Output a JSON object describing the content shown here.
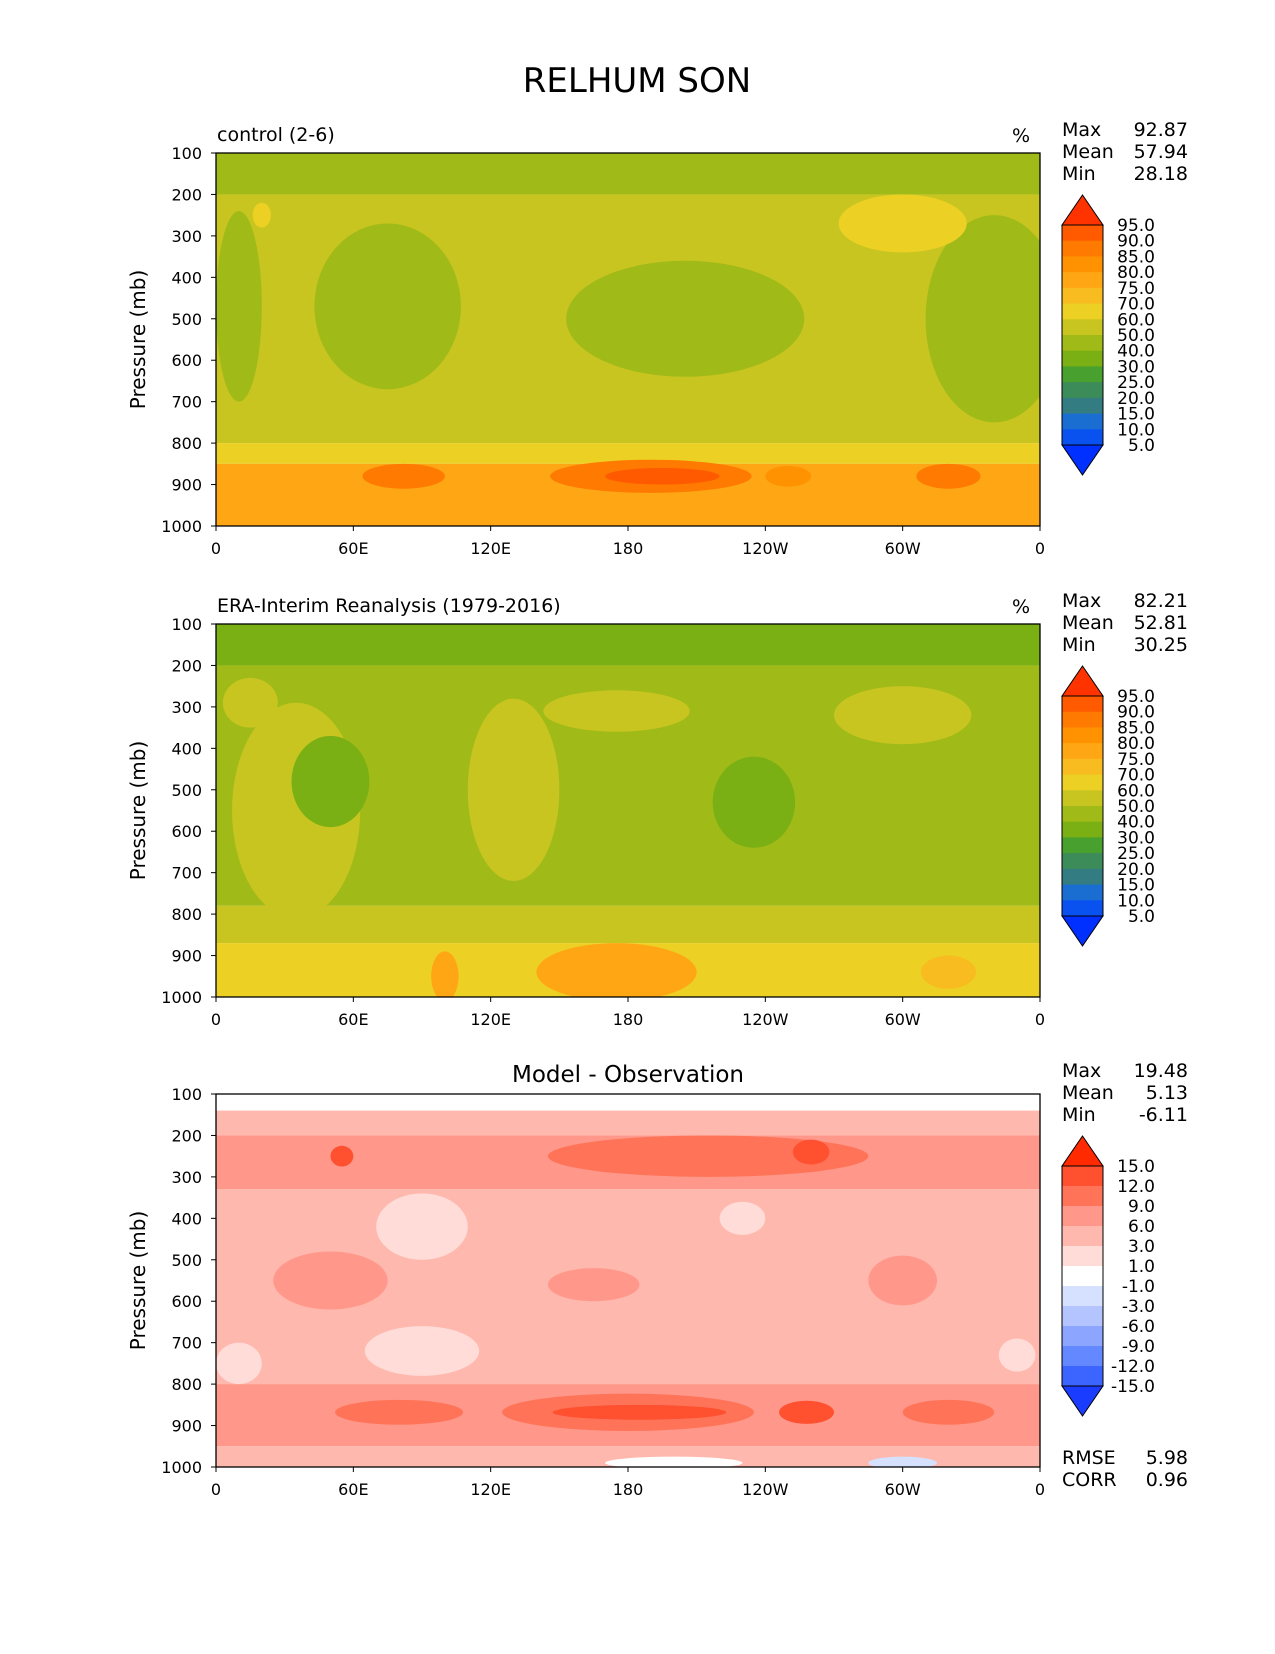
{
  "title": "RELHUM SON",
  "chart_data": [
    {
      "type": "heatmap",
      "title": "control (2-6)",
      "units": "%",
      "xlabel": "",
      "ylabel": "Pressure (mb)",
      "x_ticks": [
        "0",
        "60E",
        "120E",
        "180",
        "120W",
        "60W",
        "0"
      ],
      "y_ticks": [
        "100",
        "200",
        "300",
        "400",
        "500",
        "600",
        "700",
        "800",
        "900",
        "1000"
      ],
      "ylim": [
        1000,
        100
      ],
      "stats": [
        {
          "label": "Max",
          "value": "92.87"
        },
        {
          "label": "Mean",
          "value": "57.94"
        },
        {
          "label": "Min",
          "value": "28.18"
        }
      ],
      "colorbar": {
        "levels": [
          "95.0",
          "90.0",
          "85.0",
          "80.0",
          "75.0",
          "70.0",
          "60.0",
          "50.0",
          "40.0",
          "30.0",
          "25.0",
          "20.0",
          "15.0",
          "10.0",
          "5.0"
        ],
        "colors": [
          "#ff3300",
          "#ff5a00",
          "#ff7a00",
          "#ff9200",
          "#ffa614",
          "#f8bc20",
          "#ecd024",
          "#c8c520",
          "#a0ba18",
          "#7ab014",
          "#48a02e",
          "#3c8c5a",
          "#327c82",
          "#1a6ed2",
          "#0a52f0",
          "#0030ff"
        ]
      },
      "bands": [
        {
          "p_top": 100,
          "p_bot": 200,
          "value": 40
        },
        {
          "p_top": 200,
          "p_bot": 800,
          "value": 50
        },
        {
          "p_top": 800,
          "p_bot": 850,
          "value": 60
        },
        {
          "p_top": 850,
          "p_bot": 1000,
          "value": 75
        }
      ],
      "features": [
        {
          "lon": 75,
          "p": 470,
          "rx": 32,
          "rp": 200,
          "value": 40
        },
        {
          "lon": 205,
          "p": 500,
          "rx": 52,
          "rp": 140,
          "value": 40
        },
        {
          "lon": 340,
          "p": 500,
          "rx": 30,
          "rp": 250,
          "value": 40
        },
        {
          "lon": 10,
          "p": 470,
          "rx": 10,
          "rp": 230,
          "value": 40
        },
        {
          "lon": 300,
          "p": 270,
          "rx": 28,
          "rp": 70,
          "value": 60
        },
        {
          "lon": 20,
          "p": 250,
          "rx": 4,
          "rp": 30,
          "value": 60
        },
        {
          "lon": 190,
          "p": 880,
          "rx": 44,
          "rp": 40,
          "value": 85
        },
        {
          "lon": 195,
          "p": 880,
          "rx": 25,
          "rp": 20,
          "value": 90
        },
        {
          "lon": 82,
          "p": 880,
          "rx": 18,
          "rp": 30,
          "value": 85
        },
        {
          "lon": 320,
          "p": 880,
          "rx": 14,
          "rp": 30,
          "value": 85
        },
        {
          "lon": 250,
          "p": 880,
          "rx": 10,
          "rp": 25,
          "value": 80
        }
      ]
    },
    {
      "type": "heatmap",
      "title": "ERA-Interim Reanalysis (1979-2016)",
      "units": "%",
      "xlabel": "",
      "ylabel": "Pressure (mb)",
      "x_ticks": [
        "0",
        "60E",
        "120E",
        "180",
        "120W",
        "60W",
        "0"
      ],
      "y_ticks": [
        "100",
        "200",
        "300",
        "400",
        "500",
        "600",
        "700",
        "800",
        "900",
        "1000"
      ],
      "ylim": [
        1000,
        100
      ],
      "stats": [
        {
          "label": "Max",
          "value": "82.21"
        },
        {
          "label": "Mean",
          "value": "52.81"
        },
        {
          "label": "Min",
          "value": "30.25"
        }
      ],
      "colorbar": {
        "levels": [
          "95.0",
          "90.0",
          "85.0",
          "80.0",
          "75.0",
          "70.0",
          "60.0",
          "50.0",
          "40.0",
          "30.0",
          "25.0",
          "20.0",
          "15.0",
          "10.0",
          "5.0"
        ],
        "colors": [
          "#ff3300",
          "#ff5a00",
          "#ff7a00",
          "#ff9200",
          "#ffa614",
          "#f8bc20",
          "#ecd024",
          "#c8c520",
          "#a0ba18",
          "#7ab014",
          "#48a02e",
          "#3c8c5a",
          "#327c82",
          "#1a6ed2",
          "#0a52f0",
          "#0030ff"
        ]
      },
      "bands": [
        {
          "p_top": 100,
          "p_bot": 200,
          "value": 30
        },
        {
          "p_top": 200,
          "p_bot": 780,
          "value": 40
        },
        {
          "p_top": 780,
          "p_bot": 870,
          "value": 50
        },
        {
          "p_top": 870,
          "p_bot": 1000,
          "value": 60
        }
      ],
      "features": [
        {
          "lon": 35,
          "p": 550,
          "rx": 28,
          "rp": 260,
          "value": 50
        },
        {
          "lon": 130,
          "p": 500,
          "rx": 20,
          "rp": 220,
          "value": 50
        },
        {
          "lon": 175,
          "p": 310,
          "rx": 32,
          "rp": 50,
          "value": 50
        },
        {
          "lon": 300,
          "p": 320,
          "rx": 30,
          "rp": 70,
          "value": 50
        },
        {
          "lon": 15,
          "p": 290,
          "rx": 12,
          "rp": 60,
          "value": 50
        },
        {
          "lon": 50,
          "p": 480,
          "rx": 17,
          "rp": 110,
          "value": 30
        },
        {
          "lon": 235,
          "p": 530,
          "rx": 18,
          "rp": 110,
          "value": 30
        },
        {
          "lon": 175,
          "p": 940,
          "rx": 35,
          "rp": 70,
          "value": 75
        },
        {
          "lon": 100,
          "p": 950,
          "rx": 6,
          "rp": 60,
          "value": 75
        },
        {
          "lon": 320,
          "p": 940,
          "rx": 12,
          "rp": 40,
          "value": 70
        }
      ]
    },
    {
      "type": "heatmap",
      "title": "Model - Observation",
      "units": "",
      "xlabel": "",
      "ylabel": "Pressure (mb)",
      "x_ticks": [
        "0",
        "60E",
        "120E",
        "180",
        "120W",
        "60W",
        "0"
      ],
      "y_ticks": [
        "100",
        "200",
        "300",
        "400",
        "500",
        "600",
        "700",
        "800",
        "900",
        "1000"
      ],
      "ylim": [
        1000,
        100
      ],
      "stats": [
        {
          "label": "Max",
          "value": "19.48"
        },
        {
          "label": "Mean",
          "value": "5.13"
        },
        {
          "label": "Min",
          "value": "-6.11"
        }
      ],
      "extra_stats": [
        {
          "label": "RMSE",
          "value": "5.98"
        },
        {
          "label": "CORR",
          "value": "0.96"
        }
      ],
      "colorbar": {
        "levels": [
          "15.0",
          "12.0",
          "9.0",
          "6.0",
          "3.0",
          "1.0",
          "-1.0",
          "-3.0",
          "-6.0",
          "-9.0",
          "-12.0",
          "-15.0"
        ],
        "colors": [
          "#ff2a00",
          "#ff5030",
          "#ff7458",
          "#ff988a",
          "#ffb8ae",
          "#ffdcd8",
          "#ffffff",
          "#d6e0ff",
          "#b4c4ff",
          "#8ca6ff",
          "#6488ff",
          "#3c64ff",
          "#1a3cff"
        ]
      },
      "bands": [
        {
          "p_top": 100,
          "p_bot": 140,
          "value": 0
        },
        {
          "p_top": 140,
          "p_bot": 200,
          "value": 4
        },
        {
          "p_top": 200,
          "p_bot": 330,
          "value": 7
        },
        {
          "p_top": 330,
          "p_bot": 800,
          "value": 4
        },
        {
          "p_top": 800,
          "p_bot": 950,
          "value": 7
        },
        {
          "p_top": 950,
          "p_bot": 1000,
          "value": 4
        }
      ],
      "features": [
        {
          "lon": 180,
          "p": 868,
          "rx": 55,
          "rp": 45,
          "value": 10
        },
        {
          "lon": 185,
          "p": 868,
          "rx": 38,
          "rp": 18,
          "value": 13
        },
        {
          "lon": 80,
          "p": 868,
          "rx": 28,
          "rp": 30,
          "value": 10
        },
        {
          "lon": 320,
          "p": 868,
          "rx": 20,
          "rp": 30,
          "value": 10
        },
        {
          "lon": 258,
          "p": 868,
          "rx": 12,
          "rp": 28,
          "value": 13
        },
        {
          "lon": 215,
          "p": 250,
          "rx": 70,
          "rp": 50,
          "value": 10
        },
        {
          "lon": 260,
          "p": 240,
          "rx": 8,
          "rp": 30,
          "value": 13
        },
        {
          "lon": 55,
          "p": 250,
          "rx": 5,
          "rp": 25,
          "value": 13
        },
        {
          "lon": 90,
          "p": 420,
          "rx": 20,
          "rp": 80,
          "value": 2
        },
        {
          "lon": 50,
          "p": 550,
          "rx": 25,
          "rp": 70,
          "value": 7
        },
        {
          "lon": 300,
          "p": 550,
          "rx": 15,
          "rp": 60,
          "value": 7
        },
        {
          "lon": 165,
          "p": 560,
          "rx": 20,
          "rp": 40,
          "value": 7
        },
        {
          "lon": 90,
          "p": 720,
          "rx": 25,
          "rp": 60,
          "value": 2
        },
        {
          "lon": 10,
          "p": 750,
          "rx": 10,
          "rp": 50,
          "value": 2
        },
        {
          "lon": 350,
          "p": 730,
          "rx": 8,
          "rp": 40,
          "value": 2
        },
        {
          "lon": 230,
          "p": 400,
          "rx": 10,
          "rp": 40,
          "value": 2
        },
        {
          "lon": 200,
          "p": 990,
          "rx": 30,
          "rp": 15,
          "value": 0
        },
        {
          "lon": 300,
          "p": 990,
          "rx": 15,
          "rp": 15,
          "value": -2
        }
      ]
    }
  ]
}
